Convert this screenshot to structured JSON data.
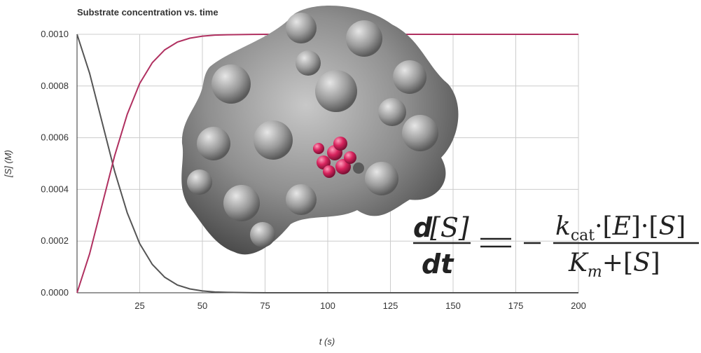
{
  "chart_data": {
    "type": "line",
    "title": "Substrate concentration vs. time",
    "xlabel": "t (s)",
    "ylabel": "[S] (M)",
    "xlim": [
      0,
      200
    ],
    "ylim": [
      0,
      0.001
    ],
    "x_ticks": [
      "25",
      "50",
      "75",
      "100",
      "125",
      "150",
      "175",
      "200"
    ],
    "y_ticks": [
      "0.0000",
      "0.0002",
      "0.0004",
      "0.0006",
      "0.0008",
      "0.0010"
    ],
    "grid": true,
    "legend": "none",
    "colors": {
      "decay": "#555555",
      "rise": "#b03060",
      "grid": "#cccccc",
      "axis": "#333333"
    },
    "series": [
      {
        "x": [
          0,
          5,
          10,
          15,
          20,
          25,
          30,
          35,
          40,
          45,
          50,
          55,
          60,
          70,
          80,
          100,
          150,
          200
        ],
        "y": [
          0.001,
          0.00085,
          0.00066,
          0.00047,
          0.00031,
          0.00019,
          0.00011,
          6e-05,
          3e-05,
          1.5e-05,
          7e-06,
          3e-06,
          1.5e-06,
          3e-07,
          0,
          0,
          0,
          0
        ]
      },
      {
        "x": [
          0,
          5,
          10,
          15,
          20,
          25,
          30,
          35,
          40,
          45,
          50,
          55,
          60,
          70,
          80,
          100,
          150,
          200
        ],
        "y": [
          0,
          0.00015,
          0.00034,
          0.00053,
          0.00069,
          0.00081,
          0.00089,
          0.00094,
          0.00097,
          0.000985,
          0.000993,
          0.000997,
          0.0009985,
          0.0009997,
          0.001,
          0.001,
          0.001,
          0.001
        ]
      }
    ]
  },
  "overlay": {
    "protein_image": "enzyme-surface-with-bound-substrate",
    "equation": {
      "lhs_numerator": "d[S]",
      "lhs_denominator": "dt",
      "equals": "=",
      "minus": "−",
      "rhs_numerator": "k_cat·[E]·[S]",
      "rhs_denominator": "K_m+[S]"
    }
  }
}
